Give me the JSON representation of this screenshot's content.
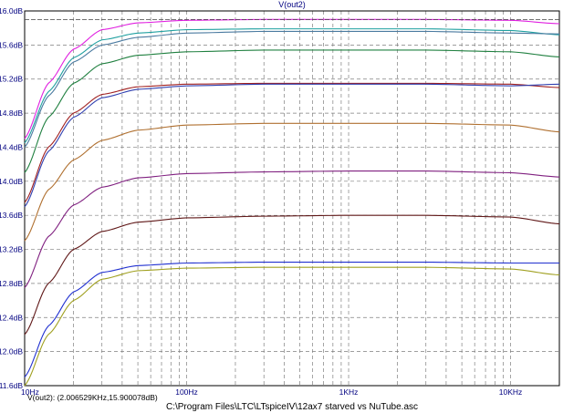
{
  "window": {
    "footer_title": "C:\\Program Files\\LTC\\LTspiceIV\\12ax7  starved  vs  NuTube.asc",
    "cursor_readout": "V(out2): (2.006529KHz,15.900078dB)"
  },
  "chart_data": {
    "type": "line",
    "title": "V(out2)",
    "xscale": "log",
    "xlim": [
      10,
      20000
    ],
    "ylim": [
      11.6,
      16.0
    ],
    "x_tick_labels": [
      {
        "value": 10,
        "label": "10Hz"
      },
      {
        "value": 100,
        "label": "100Hz"
      },
      {
        "value": 1000,
        "label": "1KHz"
      },
      {
        "value": 10000,
        "label": "10KHz"
      }
    ],
    "y_ticks": [
      11.6,
      12.0,
      12.4,
      12.8,
      13.2,
      13.6,
      14.0,
      14.4,
      14.8,
      15.2,
      15.6,
      16.0
    ],
    "y_tick_labels": [
      "11.6dB",
      "12.0dB",
      "12.4dB",
      "12.8dB",
      "13.2dB",
      "13.6dB",
      "14.0dB",
      "14.4dB",
      "14.8dB",
      "15.2dB",
      "15.6dB",
      "16.0dB"
    ],
    "cursor_y": 15.9,
    "grid": true,
    "series": [
      {
        "color": "#e020e0",
        "x": [
          10,
          14,
          20,
          30,
          50,
          100,
          300,
          1000,
          3000,
          10000,
          20000
        ],
        "y": [
          14.5,
          15.15,
          15.55,
          15.78,
          15.86,
          15.89,
          15.9,
          15.9,
          15.9,
          15.89,
          15.85
        ]
      },
      {
        "color": "#20a0a0",
        "x": [
          10,
          14,
          20,
          30,
          50,
          100,
          300,
          1000,
          3000,
          10000,
          20000
        ],
        "y": [
          14.45,
          15.05,
          15.45,
          15.66,
          15.74,
          15.78,
          15.79,
          15.79,
          15.79,
          15.77,
          15.72
        ]
      },
      {
        "color": "#4a7aa0",
        "x": [
          10,
          14,
          20,
          30,
          50,
          100,
          300,
          1000,
          3000,
          10000,
          20000
        ],
        "y": [
          14.4,
          15.0,
          15.4,
          15.6,
          15.69,
          15.74,
          15.76,
          15.76,
          15.76,
          15.74,
          15.73
        ]
      },
      {
        "color": "#208040",
        "x": [
          10,
          14,
          20,
          30,
          50,
          100,
          300,
          1000,
          3000,
          10000,
          20000
        ],
        "y": [
          14.1,
          14.75,
          15.15,
          15.38,
          15.48,
          15.52,
          15.54,
          15.54,
          15.54,
          15.52,
          15.46
        ]
      },
      {
        "color": "#a02020",
        "x": [
          10,
          14,
          20,
          30,
          50,
          100,
          300,
          1000,
          3000,
          10000,
          20000
        ],
        "y": [
          13.75,
          14.4,
          14.8,
          15.02,
          15.11,
          15.14,
          15.15,
          15.15,
          15.15,
          15.14,
          15.1
        ]
      },
      {
        "color": "#3040b0",
        "x": [
          10,
          14,
          20,
          30,
          50,
          100,
          300,
          1000,
          3000,
          10000,
          20000
        ],
        "y": [
          13.7,
          14.35,
          14.75,
          14.98,
          15.08,
          15.12,
          15.14,
          15.14,
          15.14,
          15.12,
          15.14
        ]
      },
      {
        "color": "#b07030",
        "x": [
          10,
          14,
          20,
          30,
          50,
          100,
          300,
          1000,
          3000,
          10000,
          20000
        ],
        "y": [
          13.3,
          13.9,
          14.25,
          14.48,
          14.6,
          14.66,
          14.68,
          14.68,
          14.68,
          14.66,
          14.58
        ]
      },
      {
        "color": "#802080",
        "x": [
          10,
          14,
          20,
          30,
          50,
          100,
          300,
          1000,
          3000,
          10000,
          20000
        ],
        "y": [
          12.75,
          13.35,
          13.72,
          13.93,
          14.04,
          14.09,
          14.11,
          14.12,
          14.12,
          14.1,
          14.05
        ]
      },
      {
        "color": "#601818",
        "x": [
          10,
          14,
          20,
          30,
          50,
          100,
          300,
          1000,
          3000,
          10000,
          20000
        ],
        "y": [
          12.2,
          12.8,
          13.2,
          13.41,
          13.52,
          13.57,
          13.59,
          13.6,
          13.6,
          13.58,
          13.5
        ]
      },
      {
        "color": "#2030d0",
        "x": [
          10,
          14,
          20,
          30,
          50,
          100,
          300,
          1000,
          3000,
          10000,
          20000
        ],
        "y": [
          11.7,
          12.3,
          12.7,
          12.93,
          13.01,
          13.04,
          13.05,
          13.05,
          13.05,
          13.04,
          13.04
        ]
      },
      {
        "color": "#a0a020",
        "x": [
          10,
          14,
          20,
          30,
          50,
          100,
          300,
          1000,
          3000,
          10000,
          20000
        ],
        "y": [
          11.6,
          12.2,
          12.6,
          12.85,
          12.95,
          12.98,
          12.99,
          12.99,
          12.99,
          12.97,
          12.9
        ]
      }
    ]
  }
}
